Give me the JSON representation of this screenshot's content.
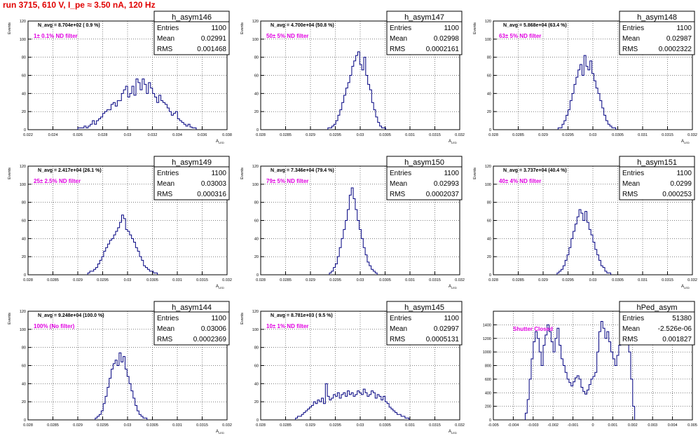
{
  "header": {
    "title": "run 3715,   610 V, I_pe ≈ 3.50 nA, 120 Hz"
  },
  "colors": {
    "histogram": "#000080",
    "filter_label": "#e000e0",
    "title": "#e00000",
    "grid": "#000000"
  },
  "stats_labels": {
    "entries": "Entries",
    "mean": "Mean",
    "rms": "RMS"
  },
  "chart_data": [
    {
      "type": "bar",
      "name": "h_asym146",
      "navg": "N_avg = 8.704e+02 ( 0.9 %)",
      "filter": "1± 0.1% ND filter",
      "entries": "1100",
      "mean": "0.02991",
      "rms": "0.001468",
      "ylabel": "Events",
      "xlabel": "A",
      "xlim": [
        0.022,
        0.038
      ],
      "ylim": [
        0,
        120
      ],
      "grid": true,
      "xticks": [
        0.022,
        0.024,
        0.026,
        0.028,
        0.03,
        0.032,
        0.034,
        0.036,
        0.038
      ],
      "xtick_labels": [
        "0.022",
        "0.024",
        "0.026",
        "0.028",
        "0.03",
        "0.032",
        "0.034",
        "0.036",
        "0.038"
      ],
      "yticks": [
        0,
        20,
        40,
        60,
        80,
        100,
        120
      ],
      "ytick_labels": [
        "0",
        "20",
        "40",
        "60",
        "80",
        "100",
        "120"
      ],
      "bin_start": 0.026,
      "bin_width": 0.000167,
      "values": [
        2,
        2,
        2,
        4,
        2,
        4,
        6,
        10,
        6,
        10,
        12,
        14,
        18,
        20,
        22,
        22,
        28,
        30,
        26,
        32,
        32,
        40,
        44,
        48,
        36,
        40,
        48,
        38,
        56,
        52,
        44,
        56,
        50,
        40,
        52,
        46,
        40,
        36,
        30,
        38,
        32,
        30,
        28,
        24,
        20,
        16,
        18,
        20,
        12,
        10,
        8,
        6,
        4,
        6,
        3,
        2,
        2
      ]
    },
    {
      "type": "bar",
      "name": "h_asym147",
      "navg": "N_avg = 4.700e+04 (50.8 %)",
      "filter": "50± 5% ND filter",
      "entries": "1100",
      "mean": "0.02998",
      "rms": "0.0002161",
      "ylabel": "Events",
      "xlabel": "A",
      "xlim": [
        0.028,
        0.032
      ],
      "ylim": [
        0,
        120
      ],
      "grid": true,
      "xticks": [
        0.028,
        0.0285,
        0.029,
        0.0295,
        0.03,
        0.0305,
        0.031,
        0.0315,
        0.032
      ],
      "xtick_labels": [
        "0.028",
        "0.0285",
        "0.029",
        "0.0295",
        "0.03",
        "0.0305",
        "0.031",
        "0.0315",
        "0.032"
      ],
      "yticks": [
        0,
        20,
        40,
        60,
        80,
        100,
        120
      ],
      "ytick_labels": [
        "0",
        "20",
        "40",
        "60",
        "80",
        "100",
        "120"
      ],
      "bin_start": 0.02935,
      "bin_width": 4e-05,
      "values": [
        2,
        2,
        4,
        6,
        10,
        16,
        22,
        30,
        38,
        46,
        52,
        60,
        70,
        76,
        82,
        86,
        72,
        66,
        80,
        60,
        50,
        44,
        30,
        22,
        14,
        8,
        4,
        2,
        2
      ]
    },
    {
      "type": "bar",
      "name": "h_asym148",
      "navg": "N_avg = 5.868e+04 (63.4 %)",
      "filter": "63± 5% ND filter",
      "entries": "1100",
      "mean": "0.02987",
      "rms": "0.0002322",
      "ylabel": "Events",
      "xlabel": "A",
      "xlim": [
        0.028,
        0.032
      ],
      "ylim": [
        0,
        120
      ],
      "grid": true,
      "xticks": [
        0.028,
        0.0285,
        0.029,
        0.0295,
        0.03,
        0.0305,
        0.031,
        0.0315,
        0.032
      ],
      "xtick_labels": [
        "0.028",
        "0.0285",
        "0.029",
        "0.0295",
        "0.03",
        "0.0305",
        "0.031",
        "0.0315",
        "0.032"
      ],
      "yticks": [
        0,
        20,
        40,
        60,
        80,
        100,
        120
      ],
      "ytick_labels": [
        "0",
        "20",
        "40",
        "60",
        "80",
        "100",
        "120"
      ],
      "bin_start": 0.0293,
      "bin_width": 4e-05,
      "values": [
        2,
        2,
        6,
        10,
        16,
        22,
        32,
        40,
        50,
        58,
        66,
        72,
        60,
        82,
        70,
        66,
        76,
        62,
        54,
        46,
        40,
        32,
        24,
        16,
        10,
        6,
        4,
        2,
        2
      ]
    },
    {
      "type": "bar",
      "name": "h_asym149",
      "navg": "N_avg = 2.417e+04 (26.1 %)",
      "filter": "25± 2.5% ND filter",
      "entries": "1100",
      "mean": "0.03003",
      "rms": "0.000316",
      "ylabel": "Events",
      "xlabel": "A",
      "xlim": [
        0.028,
        0.032
      ],
      "ylim": [
        0,
        120
      ],
      "grid": true,
      "xticks": [
        0.028,
        0.0285,
        0.029,
        0.0295,
        0.03,
        0.0305,
        0.031,
        0.0315,
        0.032
      ],
      "xtick_labels": [
        "0.028",
        "0.0285",
        "0.029",
        "0.0295",
        "0.03",
        "0.0305",
        "0.031",
        "0.0315",
        "0.032"
      ],
      "yticks": [
        0,
        20,
        40,
        60,
        80,
        100,
        120
      ],
      "ytick_labels": [
        "0",
        "20",
        "40",
        "60",
        "80",
        "100",
        "120"
      ],
      "bin_start": 0.0292,
      "bin_width": 4e-05,
      "values": [
        2,
        4,
        4,
        6,
        8,
        12,
        16,
        20,
        26,
        30,
        34,
        38,
        40,
        44,
        48,
        52,
        58,
        66,
        62,
        50,
        48,
        44,
        40,
        36,
        30,
        26,
        20,
        16,
        10,
        8,
        6,
        4,
        4,
        2,
        2
      ]
    },
    {
      "type": "bar",
      "name": "h_asym150",
      "navg": "N_avg = 7.346e+04 (79.4 %)",
      "filter": "79± 5% ND filter",
      "entries": "1100",
      "mean": "0.02993",
      "rms": "0.0002037",
      "ylabel": "Events",
      "xlabel": "A",
      "xlim": [
        0.028,
        0.032
      ],
      "ylim": [
        0,
        120
      ],
      "grid": true,
      "xticks": [
        0.028,
        0.0285,
        0.029,
        0.0295,
        0.03,
        0.0305,
        0.031,
        0.0315,
        0.032
      ],
      "xtick_labels": [
        "0.028",
        "0.0285",
        "0.029",
        "0.0295",
        "0.03",
        "0.0305",
        "0.031",
        "0.0315",
        "0.032"
      ],
      "yticks": [
        0,
        20,
        40,
        60,
        80,
        100,
        120
      ],
      "ytick_labels": [
        "0",
        "20",
        "40",
        "60",
        "80",
        "100",
        "120"
      ],
      "bin_start": 0.02938,
      "bin_width": 4e-05,
      "values": [
        2,
        4,
        8,
        12,
        20,
        30,
        40,
        50,
        60,
        72,
        88,
        96,
        84,
        72,
        60,
        50,
        40,
        30,
        22,
        14,
        10,
        6,
        4,
        2
      ]
    },
    {
      "type": "bar",
      "name": "h_asym151",
      "navg": "N_avg = 3.737e+04 (40.4 %)",
      "filter": "40± 4% ND filter",
      "entries": "1100",
      "mean": "0.0299",
      "rms": "0.000253",
      "ylabel": "Events",
      "xlabel": "A",
      "xlim": [
        0.028,
        0.032
      ],
      "ylim": [
        0,
        120
      ],
      "grid": true,
      "xticks": [
        0.028,
        0.0285,
        0.029,
        0.0295,
        0.03,
        0.0305,
        0.031,
        0.0315,
        0.032
      ],
      "xtick_labels": [
        "0.028",
        "0.0285",
        "0.029",
        "0.0295",
        "0.03",
        "0.0305",
        "0.031",
        "0.0315",
        "0.032"
      ],
      "yticks": [
        0,
        20,
        40,
        60,
        80,
        100,
        120
      ],
      "ytick_labels": [
        "0",
        "20",
        "40",
        "60",
        "80",
        "100",
        "120"
      ],
      "bin_start": 0.02928,
      "bin_width": 4e-05,
      "values": [
        2,
        4,
        6,
        10,
        16,
        22,
        30,
        40,
        48,
        56,
        64,
        72,
        68,
        60,
        70,
        58,
        50,
        44,
        36,
        28,
        22,
        16,
        10,
        8,
        4,
        2,
        2
      ]
    },
    {
      "type": "bar",
      "name": "h_asym144",
      "navg": "N_avg = 9.248e+04 (100.0 %)",
      "filter": "100% (No filter)",
      "entries": "1100",
      "mean": "0.03006",
      "rms": "0.0002369",
      "ylabel": "Events",
      "xlabel": "A",
      "xlim": [
        0.028,
        0.032
      ],
      "ylim": [
        0,
        120
      ],
      "grid": true,
      "xticks": [
        0.028,
        0.0285,
        0.029,
        0.0295,
        0.03,
        0.0305,
        0.031,
        0.0315,
        0.032
      ],
      "xtick_labels": [
        "0.028",
        "0.0285",
        "0.029",
        "0.0295",
        "0.03",
        "0.0305",
        "0.031",
        "0.0315",
        "0.032"
      ],
      "yticks": [
        0,
        20,
        40,
        60,
        80,
        100,
        120
      ],
      "ytick_labels": [
        "0",
        "20",
        "40",
        "60",
        "80",
        "100",
        "120"
      ],
      "bin_start": 0.02935,
      "bin_width": 4e-05,
      "values": [
        2,
        4,
        6,
        10,
        18,
        26,
        36,
        46,
        56,
        62,
        66,
        60,
        74,
        64,
        70,
        56,
        48,
        40,
        32,
        24,
        16,
        10,
        6,
        4,
        2,
        2
      ]
    },
    {
      "type": "bar",
      "name": "h_asym145",
      "navg": "N_avg = 8.781e+03 ( 9.5 %)",
      "filter": "10± 1% ND filter",
      "entries": "1100",
      "mean": "0.02997",
      "rms": "0.0005131",
      "ylabel": "Events",
      "xlabel": "A",
      "xlim": [
        0.028,
        0.032
      ],
      "ylim": [
        0,
        120
      ],
      "grid": true,
      "xticks": [
        0.028,
        0.0285,
        0.029,
        0.0295,
        0.03,
        0.0305,
        0.031,
        0.0315,
        0.032
      ],
      "xtick_labels": [
        "0.028",
        "0.0285",
        "0.029",
        "0.0295",
        "0.03",
        "0.0305",
        "0.031",
        "0.0315",
        "0.032"
      ],
      "yticks": [
        0,
        20,
        40,
        60,
        80,
        100,
        120
      ],
      "ytick_labels": [
        "0",
        "20",
        "40",
        "60",
        "80",
        "100",
        "120"
      ],
      "bin_start": 0.0287,
      "bin_width": 4e-05,
      "values": [
        2,
        4,
        4,
        6,
        8,
        10,
        12,
        14,
        16,
        20,
        18,
        22,
        20,
        24,
        18,
        40,
        26,
        22,
        24,
        28,
        26,
        30,
        24,
        28,
        30,
        26,
        32,
        28,
        30,
        26,
        28,
        32,
        30,
        28,
        34,
        30,
        26,
        28,
        32,
        30,
        24,
        28,
        26,
        22,
        26,
        20,
        18,
        14,
        12,
        10,
        8,
        6,
        6,
        4,
        4,
        2,
        2
      ]
    },
    {
      "type": "bar",
      "name": "hPed_asym",
      "navg": "",
      "filter": "Shutter Closed",
      "entries": "51380",
      "mean": "-2.526e-06",
      "rms": "0.001827",
      "ylabel": "",
      "xlabel": "",
      "xlim": [
        -0.005,
        0.005
      ],
      "ylim": [
        0,
        1600
      ],
      "grid": true,
      "xticks": [
        -0.005,
        -0.004,
        -0.003,
        -0.002,
        -0.001,
        0,
        0.001,
        0.002,
        0.003,
        0.004,
        0.005
      ],
      "xtick_labels": [
        "-0.005",
        "-0.004",
        "-0.003",
        "-0.002",
        "-0.001",
        "0",
        "0.001",
        "0.002",
        "0.003",
        "0.004",
        "0.005"
      ],
      "yticks": [
        0,
        200,
        400,
        600,
        800,
        1000,
        1200,
        1400
      ],
      "ytick_labels": [
        "0",
        "200",
        "400",
        "600",
        "800",
        "1000",
        "1200",
        "1400"
      ],
      "bin_start": -0.0034,
      "bin_width": 0.0001,
      "values": [
        100,
        300,
        600,
        900,
        1150,
        1300,
        1200,
        1000,
        800,
        1100,
        1250,
        1400,
        1300,
        1150,
        1000,
        1200,
        1350,
        1100,
        900,
        800,
        700,
        600,
        550,
        500,
        560,
        620,
        650,
        600,
        480,
        420,
        380,
        440,
        520,
        600,
        640,
        700,
        1000,
        1300,
        1450,
        1350,
        1200,
        1300,
        1150,
        1000,
        900,
        800,
        950,
        1100,
        1250,
        1400,
        1450,
        1350,
        1000,
        600,
        200
      ]
    }
  ]
}
